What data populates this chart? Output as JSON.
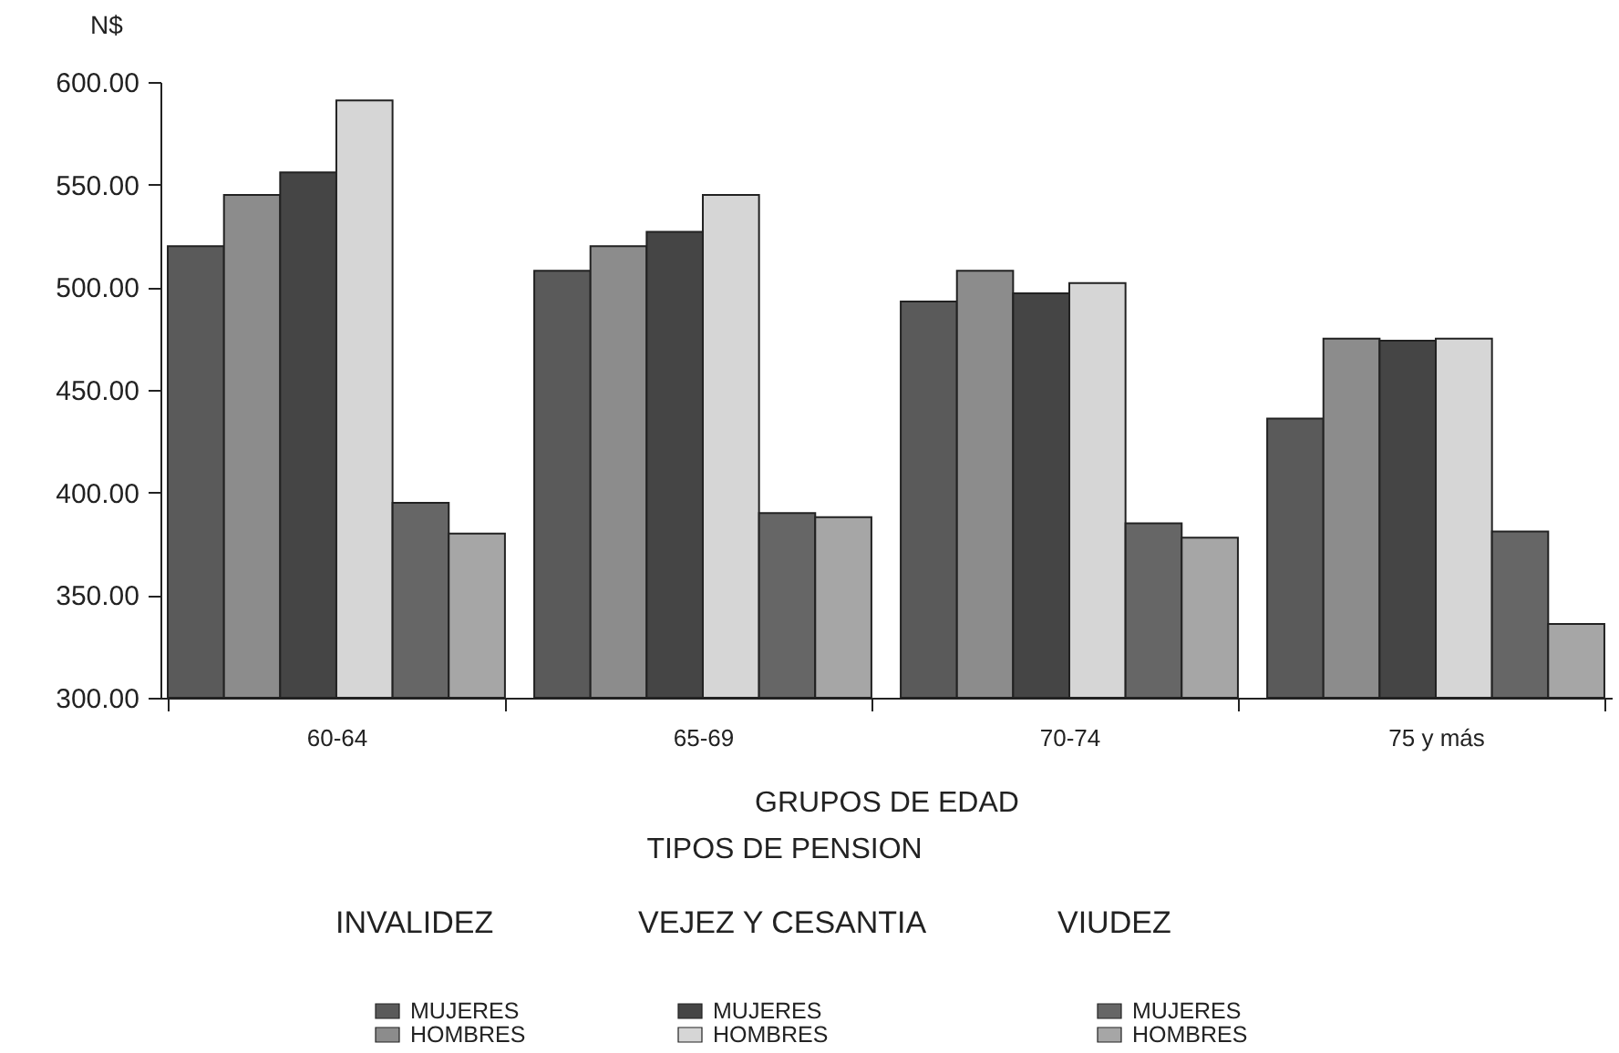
{
  "chart_data": {
    "type": "bar",
    "xlabel": "GRUPOS   DE  EDAD",
    "ylabel": "N$",
    "legend_title": "TIPOS DE PENSION",
    "annotations": [
      "INVALIDEZ",
      "VEJEZ Y CESANTIA",
      "VIUDEZ"
    ],
    "categories": [
      "60-64",
      "65-69",
      "70-74",
      "75 y más"
    ],
    "series": [
      {
        "name": "MUJERES",
        "color": "#5a5a5a",
        "values": [
          520,
          508,
          493,
          436
        ]
      },
      {
        "name": "HOMBRES",
        "color": "#8c8c8c",
        "values": [
          545,
          520,
          508,
          475
        ]
      },
      {
        "name": "MUJERES",
        "color": "#454545",
        "values": [
          556,
          527,
          497,
          474
        ]
      },
      {
        "name": "HOMBRES",
        "color": "#d6d6d6",
        "values": [
          591,
          545,
          502,
          475
        ]
      },
      {
        "name": "MUJERES",
        "color": "#666666",
        "values": [
          395,
          390,
          385,
          381
        ]
      },
      {
        "name": "HOMBRES",
        "color": "#a6a6a6",
        "values": [
          380,
          388,
          378,
          336
        ]
      }
    ],
    "ylim": [
      300,
      600
    ],
    "yticks": [
      {
        "value": 300,
        "label": "300.00"
      },
      {
        "value": 350,
        "label": "350.00"
      },
      {
        "value": 400,
        "label": "400.00"
      },
      {
        "value": 450,
        "label": "450.00"
      },
      {
        "value": 500,
        "label": "500.00"
      },
      {
        "value": 550,
        "label": "550.00"
      },
      {
        "value": 600,
        "label": "600.00"
      }
    ],
    "legend": "bottom"
  }
}
